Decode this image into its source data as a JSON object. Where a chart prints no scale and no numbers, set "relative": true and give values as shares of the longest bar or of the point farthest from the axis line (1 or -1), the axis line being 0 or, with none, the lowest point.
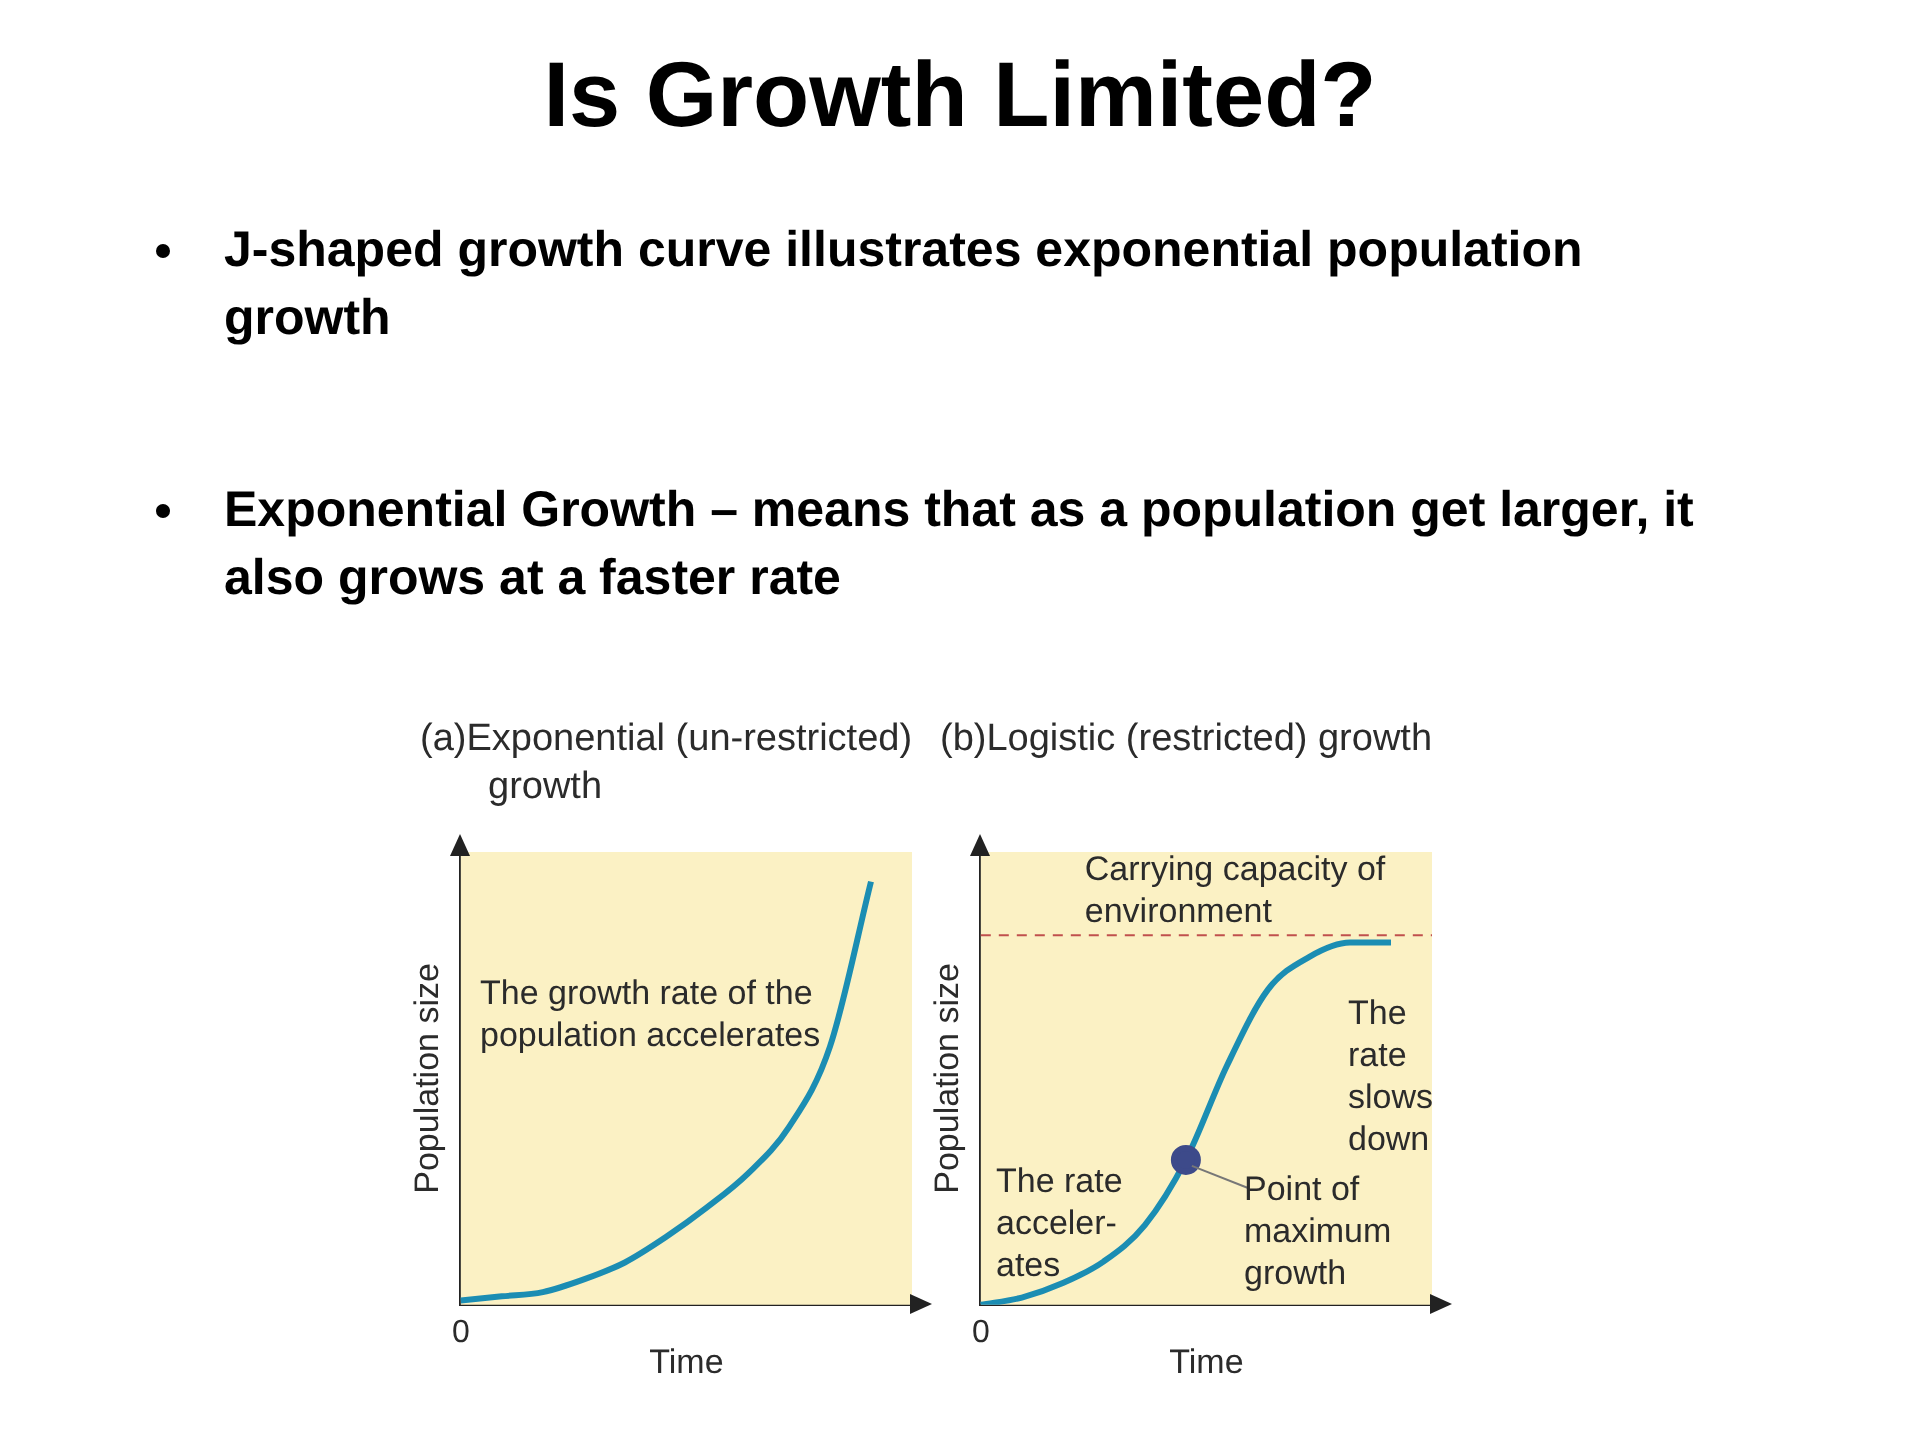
{
  "chart_data": [
    {
      "type": "other",
      "title": "Is Growth Limited?",
      "annotations": [
        "J-shaped growth curve illustrates exponential population growth",
        "Exponential Growth – means that as a population get larger, it also grows at a faster rate"
      ]
    },
    {
      "type": "line",
      "title": "(a)Exponential (un-restricted) growth",
      "xlabel": "Time",
      "ylabel": "Population size",
      "relative": true,
      "categories": [
        null,
        null,
        null,
        null,
        null,
        null,
        null,
        null,
        null,
        null,
        null,
        null
      ],
      "series": [
        {
          "color": "#1b8db3",
          "values": [
            0.01,
            0.02,
            0.03,
            0.06,
            0.1,
            0.16,
            0.23,
            0.31,
            0.42,
            0.61,
            1,
            null
          ]
        }
      ],
      "marker": "none",
      "line_style": "solid",
      "grid": false,
      "legend": false,
      "annotations": [
        "The growth rate of the population accelerates",
        "0"
      ]
    },
    {
      "type": "line",
      "title": "(b)Logistic (restricted) growth",
      "xlabel": "Time",
      "ylabel": "Population size",
      "relative": true,
      "categories": [
        null,
        null,
        null,
        null,
        null,
        null,
        null,
        null,
        null,
        null,
        null,
        null
      ],
      "series": [
        {
          "color": "#1b8db3",
          "values": [
            0,
            0.02,
            0.06,
            0.12,
            0.22,
            0.4,
            0.66,
            0.87,
            0.96,
            1,
            1,
            null
          ]
        }
      ],
      "ref_lines": [
        {
          "axis": "y",
          "value": 1.02,
          "label": "Carrying capacity of environment",
          "color": "#c0504d",
          "line_style": "dashed"
        }
      ],
      "marker": "none",
      "line_style": "solid",
      "grid": false,
      "legend": false,
      "annotations": [
        "The rate slows down",
        "The rate acceler-ates",
        "Point of maximum growth",
        "0"
      ]
    }
  ]
}
